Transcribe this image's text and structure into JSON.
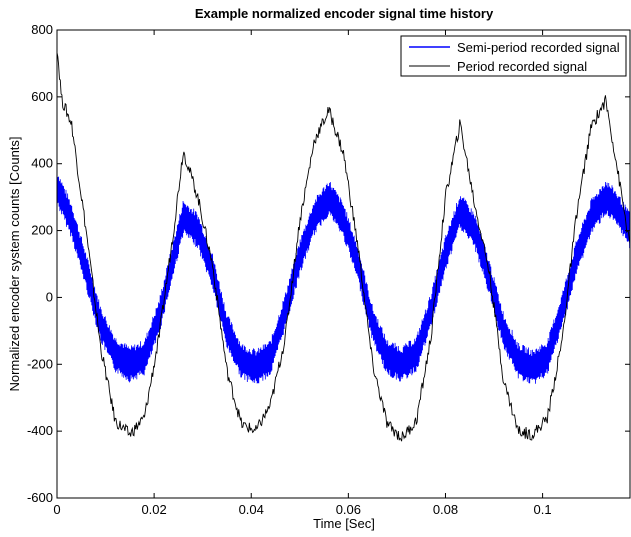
{
  "chart_data": {
    "type": "line",
    "title": "Example normalized encoder signal time history",
    "xlabel": "Time [Sec]",
    "ylabel": "Normalized encoder system counts [Counts]",
    "xlim": [
      0,
      0.118
    ],
    "ylim": [
      -600,
      800
    ],
    "xticks": [
      0,
      0.02,
      0.04,
      0.06,
      0.08,
      0.1
    ],
    "xtick_labels": [
      "0",
      "0.02",
      "0.04",
      "0.06",
      "0.08",
      "0.1"
    ],
    "yticks": [
      -600,
      -400,
      -200,
      0,
      200,
      400,
      600,
      800
    ],
    "ytick_labels": [
      "-600",
      "-400",
      "-200",
      "0",
      "200",
      "400",
      "600",
      "800"
    ],
    "grid": false,
    "legend_position": "top-right",
    "series": [
      {
        "name": "Semi-period recorded signal",
        "color": "#0000ff",
        "x": [
          0,
          0.003,
          0.006,
          0.009,
          0.012,
          0.015,
          0.018,
          0.021,
          0.024,
          0.026,
          0.029,
          0.032,
          0.035,
          0.038,
          0.041,
          0.044,
          0.047,
          0.05,
          0.053,
          0.056,
          0.059,
          0.062,
          0.065,
          0.068,
          0.071,
          0.074,
          0.077,
          0.08,
          0.083,
          0.086,
          0.089,
          0.092,
          0.095,
          0.098,
          0.101,
          0.104,
          0.107,
          0.11,
          0.113,
          0.115,
          0.118
        ],
        "values": [
          330,
          230,
          80,
          -80,
          -170,
          -200,
          -180,
          -60,
          120,
          240,
          200,
          80,
          -100,
          -190,
          -210,
          -180,
          -40,
          120,
          240,
          300,
          230,
          100,
          -80,
          -180,
          -200,
          -170,
          -40,
          130,
          260,
          200,
          60,
          -100,
          -190,
          -210,
          -180,
          -40,
          120,
          240,
          300,
          270,
          200
        ],
        "noise_amplitude": 55
      },
      {
        "name": "Period recorded signal",
        "color": "#000000",
        "x": [
          0,
          0.001,
          0.003,
          0.006,
          0.009,
          0.012,
          0.015,
          0.018,
          0.021,
          0.024,
          0.026,
          0.029,
          0.032,
          0.035,
          0.038,
          0.041,
          0.044,
          0.047,
          0.05,
          0.053,
          0.056,
          0.059,
          0.062,
          0.065,
          0.068,
          0.071,
          0.074,
          0.077,
          0.08,
          0.083,
          0.086,
          0.089,
          0.092,
          0.095,
          0.098,
          0.101,
          0.104,
          0.107,
          0.11,
          0.113,
          0.115,
          0.118
        ],
        "values": [
          750,
          590,
          520,
          200,
          -150,
          -370,
          -410,
          -360,
          -120,
          200,
          440,
          300,
          100,
          -220,
          -380,
          -400,
          -320,
          -120,
          230,
          470,
          560,
          430,
          150,
          -200,
          -380,
          -420,
          -370,
          -120,
          300,
          520,
          280,
          80,
          -250,
          -400,
          -410,
          -360,
          -130,
          250,
          510,
          590,
          420,
          150
        ],
        "noise_amplitude": 18
      }
    ]
  }
}
